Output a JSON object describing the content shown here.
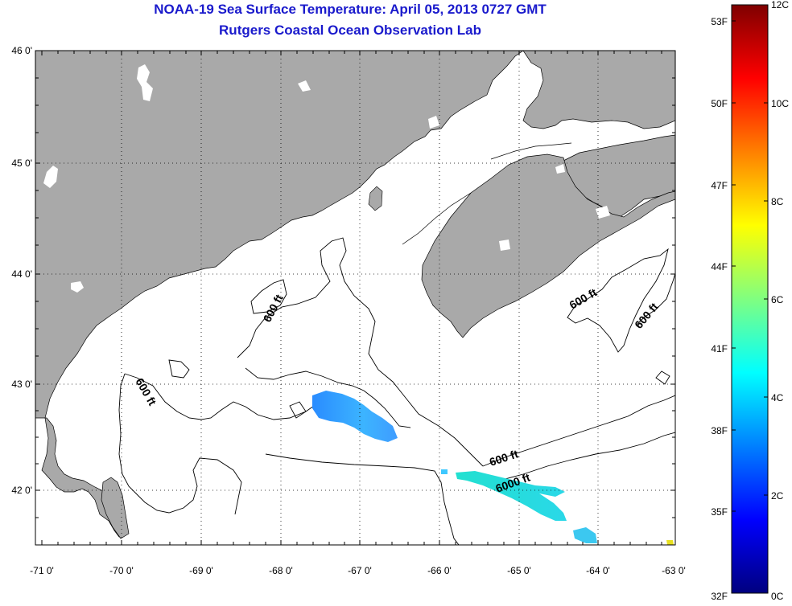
{
  "title": "NOAA-19 Sea Surface Temperature:  April 05, 2013 0727 GMT",
  "subtitle": "Rutgers Coastal Ocean Observation Lab",
  "map": {
    "lat_labels": [
      "46 0'",
      "45 0'",
      "44 0'",
      "43 0'",
      "42 0'"
    ],
    "lon_labels": [
      "-71 0'",
      "-70 0'",
      "-69 0'",
      "-68 0'",
      "-67 0'",
      "-66 0'",
      "-65 0'",
      "-64 0'",
      "-63 0'"
    ],
    "contour_labels": [
      "600 ft",
      "600 ft",
      "600 ft",
      "600 ft",
      "600 ft",
      "6000 ft"
    ],
    "colors": {
      "land": "#a9a9a9",
      "ocean": "#ffffff",
      "contour": "#000000"
    }
  },
  "colorbar": {
    "fahrenheit_labels": [
      "53F",
      "50F",
      "47F",
      "44F",
      "41F",
      "38F",
      "35F",
      "32F"
    ],
    "celsius_labels": [
      "12C",
      "10C",
      "8C",
      "6C",
      "4C",
      "2C",
      "0C"
    ],
    "range_c": [
      0,
      12
    ],
    "colormap": [
      "#00007f",
      "#0000ff",
      "#0080ff",
      "#00ffff",
      "#80ff80",
      "#ffff00",
      "#ff8000",
      "#ff0000",
      "#7f0000"
    ]
  }
}
